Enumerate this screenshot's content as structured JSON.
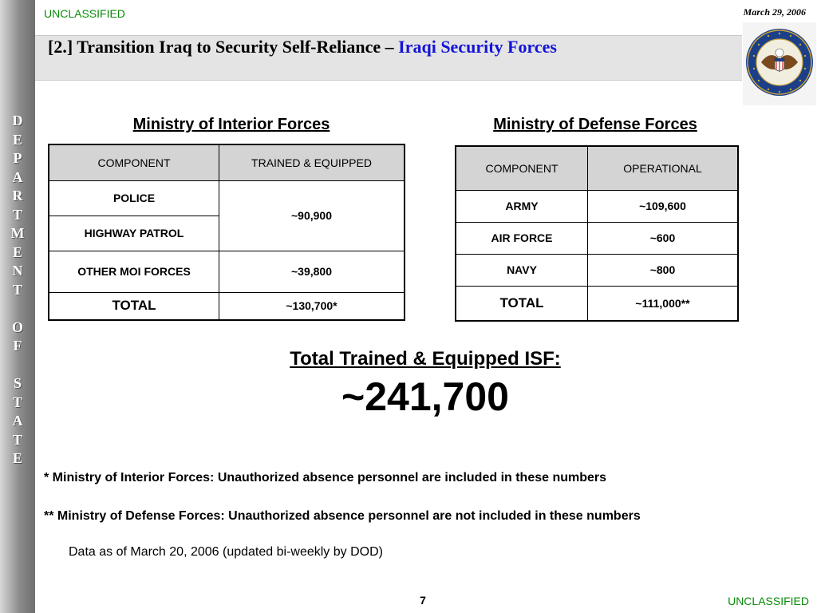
{
  "sidebar": {
    "text": "D\nE\nP\nA\nR\nT\nM\nE\nN\nT\n\nO\nF\n\nS\nT\nA\nT\nE"
  },
  "header": {
    "classification": "UNCLASSIFIED",
    "date": "March 29, 2006",
    "title_main": "[2.] Transition Iraq to Security Self-Reliance – ",
    "title_accent": "Iraqi Security Forces",
    "accent_color": "#1414d8",
    "seal_text": "DEPARTMENT OF STATE · UNITED STATES OF AMERICA"
  },
  "moi": {
    "heading": "Ministry of Interior Forces",
    "columns": [
      "COMPONENT",
      "TRAINED & EQUIPPED"
    ],
    "rows": [
      {
        "component": "POLICE"
      },
      {
        "component": "HIGHWAY PATROL"
      },
      {
        "component": "OTHER MOI FORCES",
        "value": "~39,800"
      }
    ],
    "merged_value": "~90,900",
    "total_label": "TOTAL",
    "total_value": "~130,700*"
  },
  "mod": {
    "heading": "Ministry of Defense Forces",
    "columns": [
      "COMPONENT",
      "OPERATIONAL"
    ],
    "rows": [
      {
        "component": "ARMY",
        "value": "~109,600"
      },
      {
        "component": "AIR FORCE",
        "value": "~600"
      },
      {
        "component": "NAVY",
        "value": "~800"
      }
    ],
    "total_label": "TOTAL",
    "total_value": "~111,000**"
  },
  "summary": {
    "heading": "Total Trained & Equipped ISF:",
    "value": "~241,700"
  },
  "footnotes": {
    "moi_note": "* Ministry of Interior Forces: Unauthorized absence personnel are included in these numbers",
    "mod_note": "** Ministry of Defense Forces: Unauthorized absence personnel are not included in these numbers",
    "data_note": "Data as of March 20, 2006 (updated bi-weekly by DOD)"
  },
  "footer": {
    "page_number": "7",
    "classification": "UNCLASSIFIED",
    "classification_color": "#0a8a0a"
  }
}
